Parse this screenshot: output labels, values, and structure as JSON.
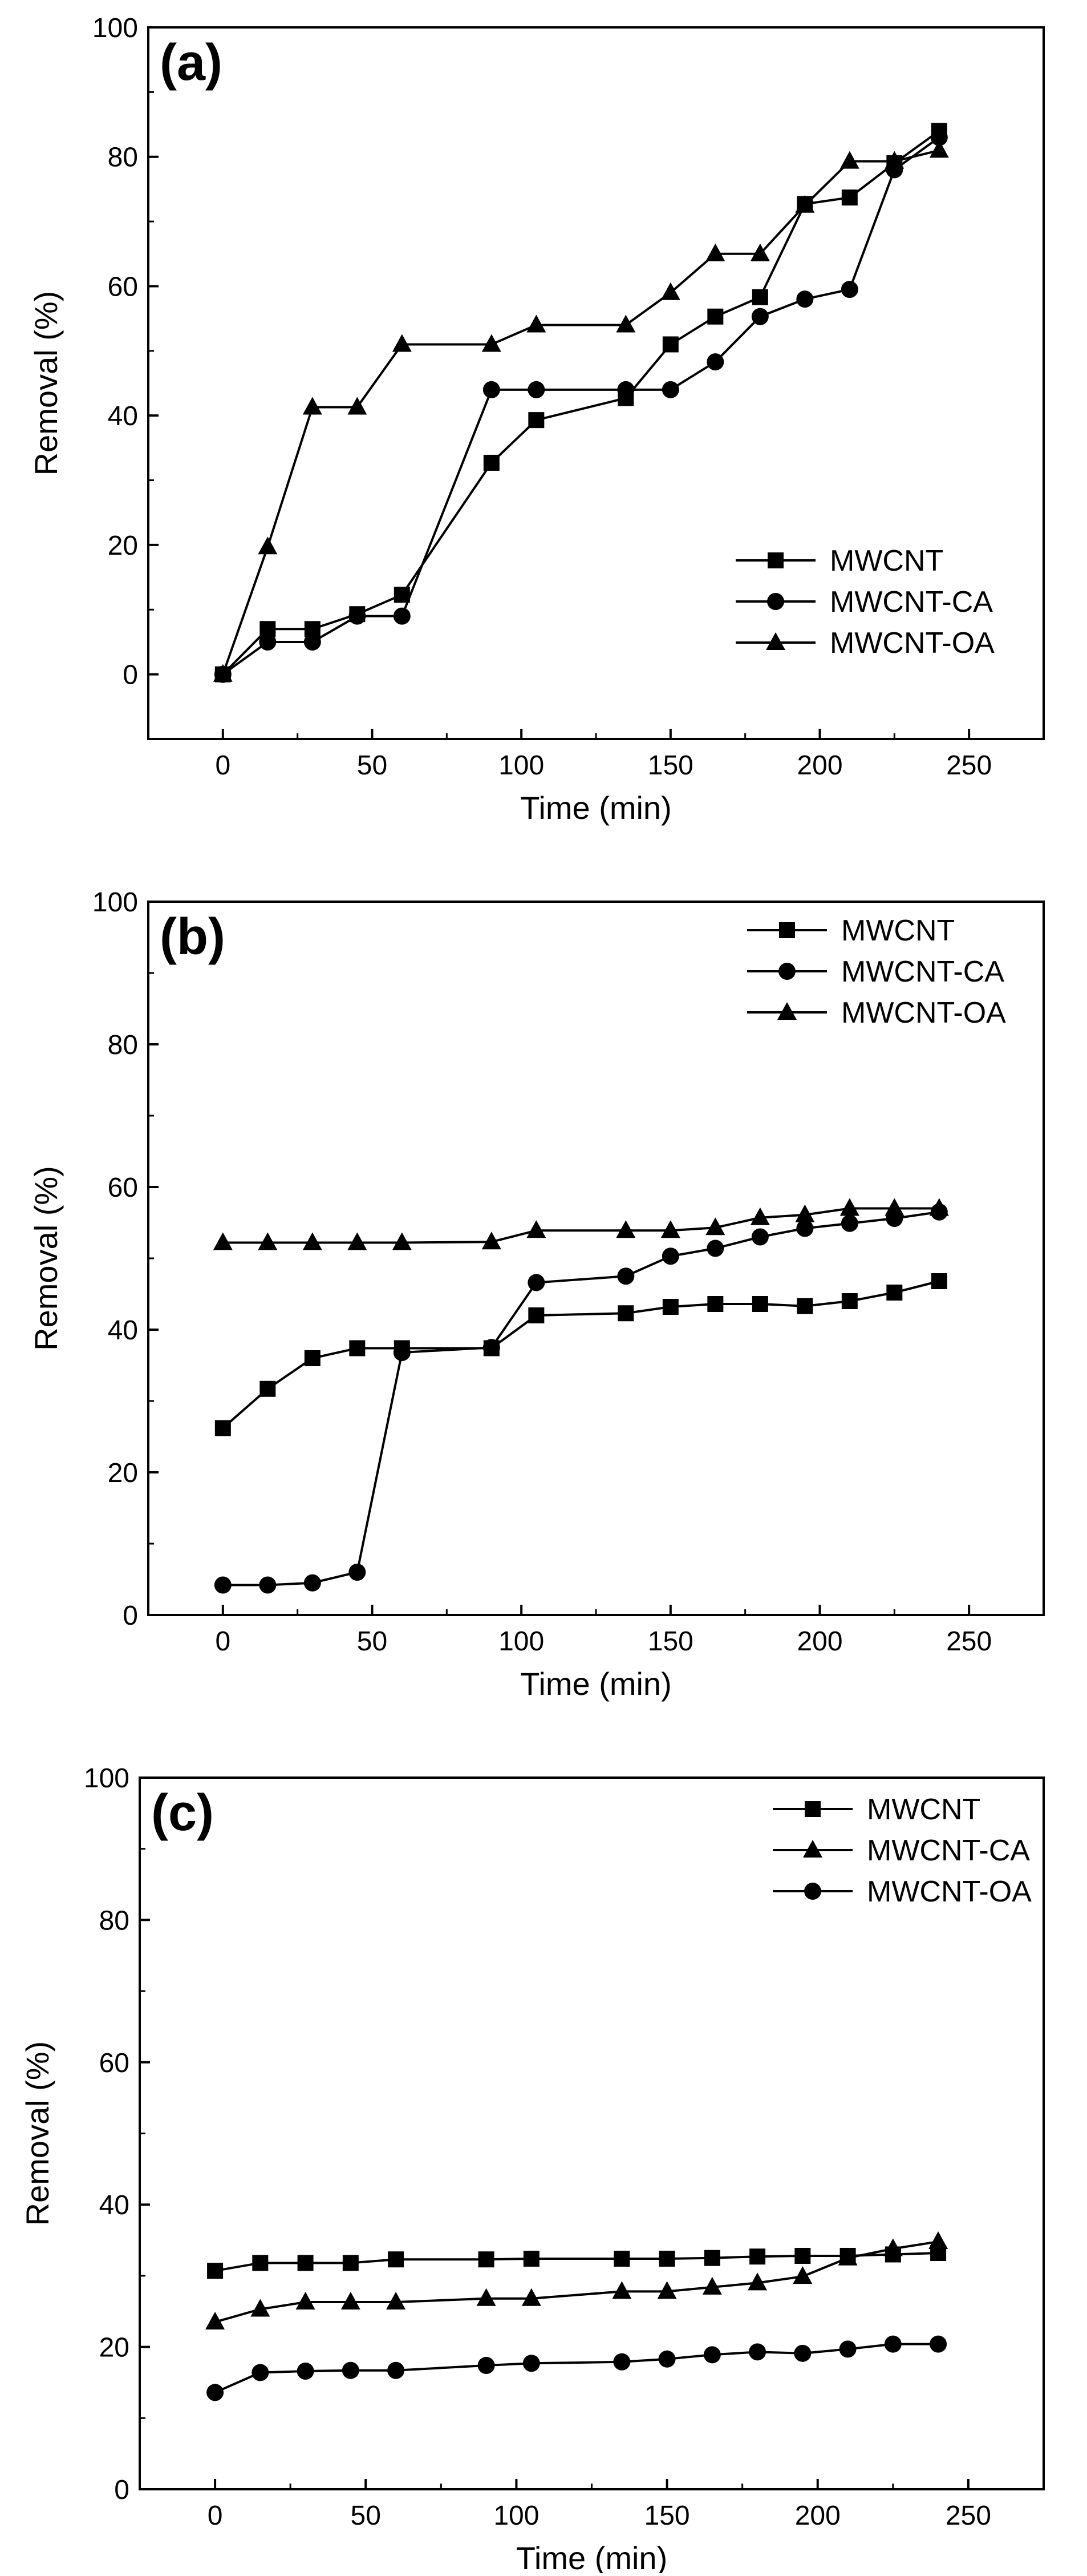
{
  "chart_data": [
    {
      "type": "line",
      "panel_label": "(a)",
      "xlabel": "Time (min)",
      "ylabel": "Removal (%)",
      "xlim": [
        -25,
        275
      ],
      "ylim": [
        -10,
        100
      ],
      "xticks": [
        0,
        50,
        100,
        150,
        200,
        250
      ],
      "yticks": [
        0,
        20,
        40,
        60,
        80,
        100
      ],
      "legend_position": "bottom-right",
      "series": [
        {
          "name": "MWCNT",
          "marker": "square",
          "x": [
            0,
            15,
            30,
            45,
            60,
            90,
            105,
            135,
            150,
            165,
            180,
            195,
            210,
            225,
            240
          ],
          "y": [
            0,
            7,
            7,
            9.3,
            12.3,
            32.7,
            39.3,
            42.7,
            51,
            55.3,
            58.3,
            72.7,
            73.7,
            79,
            84
          ]
        },
        {
          "name": "MWCNT-CA",
          "marker": "circle",
          "x": [
            0,
            15,
            30,
            45,
            60,
            90,
            105,
            135,
            150,
            165,
            180,
            195,
            210,
            225,
            240
          ],
          "y": [
            0,
            5,
            5,
            9,
            9,
            44,
            44,
            44,
            44,
            48.3,
            55.3,
            58,
            59.5,
            78,
            83
          ]
        },
        {
          "name": "MWCNT-OA",
          "marker": "triangle",
          "x": [
            0,
            15,
            30,
            45,
            60,
            90,
            105,
            135,
            150,
            165,
            180,
            195,
            210,
            225,
            240
          ],
          "y": [
            0,
            19.7,
            41.3,
            41.3,
            51,
            51,
            54,
            54,
            59,
            65,
            65,
            72.5,
            79.3,
            79.3,
            81
          ]
        }
      ]
    },
    {
      "type": "line",
      "panel_label": "(b)",
      "xlabel": "Time (min)",
      "ylabel": "Removal (%)",
      "xlim": [
        -25,
        275
      ],
      "ylim": [
        0,
        100
      ],
      "xticks": [
        0,
        50,
        100,
        150,
        200,
        250
      ],
      "yticks": [
        0,
        20,
        40,
        60,
        80,
        100
      ],
      "legend_position": "top-right",
      "series": [
        {
          "name": "MWCNT",
          "marker": "square",
          "x": [
            0,
            15,
            30,
            45,
            60,
            90,
            105,
            135,
            150,
            165,
            180,
            195,
            210,
            225,
            240
          ],
          "y": [
            26.2,
            31.7,
            36,
            37.4,
            37.4,
            37.4,
            42,
            42.3,
            43.2,
            43.6,
            43.6,
            43.3,
            44,
            45.2,
            46.8
          ]
        },
        {
          "name": "MWCNT-CA",
          "marker": "circle",
          "x": [
            0,
            15,
            30,
            45,
            60,
            90,
            105,
            135,
            150,
            165,
            180,
            195,
            210,
            225,
            240
          ],
          "y": [
            4.2,
            4.2,
            4.5,
            6,
            36.8,
            37.5,
            46.6,
            47.5,
            50.3,
            51.4,
            53,
            54.2,
            54.9,
            55.6,
            56.5
          ]
        },
        {
          "name": "MWCNT-OA",
          "marker": "triangle",
          "x": [
            0,
            15,
            30,
            45,
            60,
            90,
            105,
            135,
            150,
            165,
            180,
            195,
            210,
            225,
            240
          ],
          "y": [
            52.2,
            52.2,
            52.2,
            52.2,
            52.2,
            52.3,
            53.9,
            53.9,
            53.9,
            54.3,
            55.7,
            56.1,
            57,
            57,
            57
          ]
        }
      ]
    },
    {
      "type": "line",
      "panel_label": "(c)",
      "xlabel": "Time (min)",
      "ylabel": "Removal (%)",
      "xlim": [
        -25,
        275
      ],
      "ylim": [
        0,
        100
      ],
      "xticks": [
        0,
        50,
        100,
        150,
        200,
        250
      ],
      "yticks": [
        0,
        20,
        40,
        60,
        80,
        100
      ],
      "legend_position": "top-right",
      "series": [
        {
          "name": "MWCNT",
          "marker": "square",
          "x": [
            0,
            15,
            30,
            45,
            60,
            90,
            105,
            135,
            150,
            165,
            180,
            195,
            210,
            225,
            240
          ],
          "y": [
            30.7,
            31.8,
            31.8,
            31.8,
            32.3,
            32.3,
            32.4,
            32.4,
            32.4,
            32.5,
            32.7,
            32.8,
            32.8,
            33,
            33.2
          ]
        },
        {
          "name": "MWCNT-CA",
          "marker": "triangle",
          "x": [
            0,
            15,
            30,
            45,
            60,
            90,
            105,
            135,
            150,
            165,
            180,
            195,
            210,
            225,
            240
          ],
          "y": [
            23.5,
            25.3,
            26.3,
            26.3,
            26.3,
            26.8,
            26.8,
            27.8,
            27.8,
            28.4,
            29,
            29.9,
            32.5,
            33.8,
            34.8
          ]
        },
        {
          "name": "MWCNT-OA",
          "marker": "circle",
          "x": [
            0,
            15,
            30,
            45,
            60,
            90,
            105,
            135,
            150,
            165,
            180,
            195,
            210,
            225,
            240
          ],
          "y": [
            13.6,
            16.4,
            16.6,
            16.7,
            16.7,
            17.4,
            17.7,
            17.9,
            18.3,
            18.9,
            19.3,
            19.1,
            19.7,
            20.4,
            20.4
          ]
        }
      ]
    }
  ]
}
